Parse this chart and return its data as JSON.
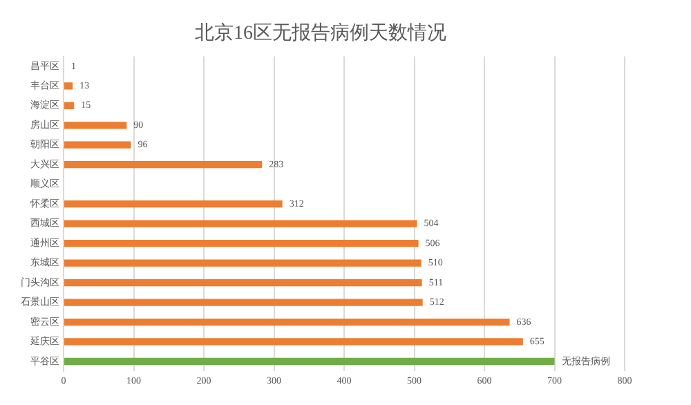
{
  "chart_data": {
    "type": "bar",
    "orientation": "horizontal",
    "title": "北京16区无报告病例天数情况",
    "categories": [
      "昌平区",
      "丰台区",
      "海淀区",
      "房山区",
      "朝阳区",
      "大兴区",
      "顺义区",
      "怀柔区",
      "西城区",
      "通州区",
      "东城区",
      "门头沟区",
      "石景山区",
      "密云区",
      "延庆区",
      "平谷区"
    ],
    "values": [
      1,
      13,
      15,
      90,
      96,
      283,
      null,
      312,
      504,
      506,
      510,
      511,
      512,
      636,
      655,
      700
    ],
    "colors": [
      "#ed7d31",
      "#ed7d31",
      "#ed7d31",
      "#ed7d31",
      "#ed7d31",
      "#ed7d31",
      "#ed7d31",
      "#ed7d31",
      "#ed7d31",
      "#ed7d31",
      "#ed7d31",
      "#ed7d31",
      "#ed7d31",
      "#ed7d31",
      "#ed7d31",
      "#70ad47"
    ],
    "value_labels": [
      "1",
      "13",
      "15",
      "90",
      "96",
      "283",
      null,
      "312",
      "504",
      "506",
      "510",
      "511",
      "512",
      "636",
      "655",
      "无报告病例"
    ],
    "xlim": [
      0,
      800
    ],
    "xticks": [
      0,
      100,
      200,
      300,
      400,
      500,
      600,
      700,
      800
    ],
    "grid": "x",
    "legend": false
  }
}
